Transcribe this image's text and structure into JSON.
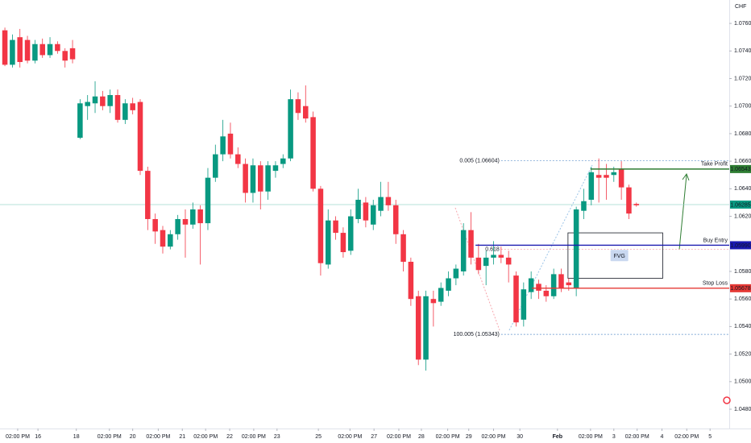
{
  "chart_data": {
    "type": "candlestick",
    "currency": "CHF",
    "up_color": "#089981",
    "down_color": "#f23645",
    "xlim": [
      -0.65,
      96.35
    ],
    "ylim": [
      1.0473,
      1.0777
    ],
    "yticks": [
      {
        "value": 1.076,
        "label": "1.07600"
      },
      {
        "value": 1.074,
        "label": "1.07400"
      },
      {
        "value": 1.072,
        "label": "1.07200"
      },
      {
        "value": 1.07,
        "label": "1.07000"
      },
      {
        "value": 1.068,
        "label": "1.06800"
      },
      {
        "value": 1.066,
        "label": "1.06600"
      },
      {
        "value": 1.064,
        "label": "1.06400"
      },
      {
        "value": 1.062,
        "label": "1.06200"
      },
      {
        "value": 1.058,
        "label": "1.05800"
      },
      {
        "value": 1.056,
        "label": "1.05600"
      },
      {
        "value": 1.054,
        "label": "1.05400"
      },
      {
        "value": 1.052,
        "label": "1.05200"
      },
      {
        "value": 1.05,
        "label": "1.05000"
      },
      {
        "value": 1.048,
        "label": "1.04800"
      }
    ],
    "xticks": [
      {
        "value": 1.7,
        "label": "02:00 PM"
      },
      {
        "value": 4.4,
        "label": "16"
      },
      {
        "value": 9.5,
        "label": "18"
      },
      {
        "value": 13.9,
        "label": "02:00 PM"
      },
      {
        "value": 17.0,
        "label": "20"
      },
      {
        "value": 20.4,
        "label": "02:00 PM"
      },
      {
        "value": 23.6,
        "label": "21"
      },
      {
        "value": 26.7,
        "label": "02:00 PM"
      },
      {
        "value": 29.9,
        "label": "22"
      },
      {
        "value": 33.1,
        "label": "02:00 PM"
      },
      {
        "value": 36.2,
        "label": "23"
      },
      {
        "value": 41.7,
        "label": "25"
      },
      {
        "value": 45.9,
        "label": "02:00 PM"
      },
      {
        "value": 49.1,
        "label": "27"
      },
      {
        "value": 52.4,
        "label": "02:00 PM"
      },
      {
        "value": 55.4,
        "label": "28"
      },
      {
        "value": 58.9,
        "label": "02:00 PM"
      },
      {
        "value": 61.7,
        "label": "29"
      },
      {
        "value": 65.0,
        "label": "02:00 PM"
      },
      {
        "value": 68.5,
        "label": "30"
      },
      {
        "value": 73.5,
        "label": "Feb"
      },
      {
        "value": 77.9,
        "label": "02:00 PM"
      },
      {
        "value": 81.0,
        "label": "3"
      },
      {
        "value": 84.1,
        "label": "02:00 PM"
      },
      {
        "value": 87.4,
        "label": "4"
      },
      {
        "value": 90.7,
        "label": "02:00 PM"
      },
      {
        "value": 93.8,
        "label": "5"
      }
    ],
    "candles": [
      [
        1.0755,
        1.0757,
        1.0729,
        1.073
      ],
      [
        1.073,
        1.0752,
        1.0728,
        1.0748
      ],
      [
        1.075,
        1.0756,
        1.0728,
        1.0732
      ],
      [
        1.0748,
        1.0751,
        1.0731,
        1.0733
      ],
      [
        1.0733,
        1.0748,
        1.0731,
        1.0745
      ],
      [
        1.0745,
        1.0749,
        1.0735,
        1.0737
      ],
      [
        1.0737,
        1.075,
        1.0735,
        1.0745
      ],
      [
        1.0745,
        1.0747,
        1.0738,
        1.074
      ],
      [
        1.074,
        1.0742,
        1.0728,
        1.0733
      ],
      [
        1.0742,
        1.0748,
        1.0731,
        1.0734
      ],
      [
        1.0677,
        1.0705,
        1.0676,
        1.0702
      ],
      [
        1.07,
        1.0708,
        1.069,
        1.0703
      ],
      [
        1.0702,
        1.0718,
        1.0695,
        1.0707
      ],
      [
        1.0707,
        1.0711,
        1.0697,
        1.07
      ],
      [
        1.07,
        1.0712,
        1.0695,
        1.0708
      ],
      [
        1.0708,
        1.0712,
        1.0688,
        1.069
      ],
      [
        1.069,
        1.0705,
        1.0687,
        1.0702
      ],
      [
        1.0702,
        1.0706,
        1.0694,
        1.0697
      ],
      [
        1.0703,
        1.0705,
        1.065,
        1.0653
      ],
      [
        1.0653,
        1.0656,
        1.061,
        1.0618
      ],
      [
        1.0618,
        1.0622,
        1.06,
        1.0609
      ],
      [
        1.061,
        1.0613,
        1.0593,
        1.0598
      ],
      [
        1.0598,
        1.061,
        1.0596,
        1.0607
      ],
      [
        1.0607,
        1.0621,
        1.0603,
        1.0618
      ],
      [
        1.0618,
        1.0625,
        1.059,
        1.0614
      ],
      [
        1.0614,
        1.063,
        1.0611,
        1.0625
      ],
      [
        1.0625,
        1.0628,
        1.0585,
        1.0615
      ],
      [
        1.0615,
        1.0655,
        1.061,
        1.0648
      ],
      [
        1.0648,
        1.0672,
        1.0645,
        1.0665
      ],
      [
        1.0665,
        1.069,
        1.066,
        1.0678
      ],
      [
        1.068,
        1.0688,
        1.0662,
        1.0665
      ],
      [
        1.0665,
        1.067,
        1.0655,
        1.0658
      ],
      [
        1.0658,
        1.0662,
        1.063,
        1.0637
      ],
      [
        1.0637,
        1.0662,
        1.063,
        1.0657
      ],
      [
        1.0657,
        1.066,
        1.0625,
        1.0638
      ],
      [
        1.0638,
        1.066,
        1.0632,
        1.0657
      ],
      [
        1.0653,
        1.066,
        1.0648,
        1.0657
      ],
      [
        1.0658,
        1.0665,
        1.0655,
        1.0662
      ],
      [
        1.0662,
        1.0712,
        1.066,
        1.0705
      ],
      [
        1.0705,
        1.071,
        1.069,
        1.0695
      ],
      [
        1.07,
        1.0715,
        1.0688,
        1.0691
      ],
      [
        1.0692,
        1.0696,
        1.0638,
        1.064
      ],
      [
        1.064,
        1.0642,
        1.0577,
        1.0586
      ],
      [
        1.0585,
        1.0625,
        1.0582,
        1.0617
      ],
      [
        1.0617,
        1.062,
        1.0603,
        1.0608
      ],
      [
        1.0608,
        1.0612,
        1.059,
        1.0594
      ],
      [
        1.0595,
        1.0625,
        1.0592,
        1.062
      ],
      [
        1.0618,
        1.064,
        1.0615,
        1.0632
      ],
      [
        1.063,
        1.0634,
        1.0612,
        1.0617
      ],
      [
        1.0614,
        1.0632,
        1.061,
        1.0628
      ],
      [
        1.0624,
        1.0645,
        1.062,
        1.0634
      ],
      [
        1.0634,
        1.0645,
        1.0624,
        1.0628
      ],
      [
        1.0628,
        1.0632,
        1.06,
        1.0607
      ],
      [
        1.0607,
        1.061,
        1.058,
        1.0587
      ],
      [
        1.0587,
        1.059,
        1.0555,
        1.056
      ],
      [
        1.0562,
        1.0566,
        1.0512,
        1.0516
      ],
      [
        1.0516,
        1.0566,
        1.0508,
        1.0562
      ],
      [
        1.056,
        1.0566,
        1.054,
        1.0557
      ],
      [
        1.0558,
        1.0572,
        1.0555,
        1.0568
      ],
      [
        1.0566,
        1.058,
        1.0562,
        1.0575
      ],
      [
        1.0575,
        1.0585,
        1.057,
        1.0582
      ],
      [
        1.058,
        1.0615,
        1.0577,
        1.061
      ],
      [
        1.061,
        1.0623,
        1.0585,
        1.059
      ],
      [
        1.059,
        1.06,
        1.0578,
        1.0581
      ],
      [
        1.0584,
        1.0595,
        1.057,
        1.059
      ],
      [
        1.059,
        1.0602,
        1.0585,
        1.0592
      ],
      [
        1.0592,
        1.0598,
        1.0586,
        1.059
      ],
      [
        1.059,
        1.0595,
        1.0572,
        1.0585
      ],
      [
        1.0577,
        1.058,
        1.054,
        1.0543
      ],
      [
        1.0545,
        1.0572,
        1.054,
        1.0567
      ],
      [
        1.0565,
        1.058,
        1.056,
        1.0575
      ],
      [
        1.0571,
        1.0574,
        1.056,
        1.0566
      ],
      [
        1.0566,
        1.057,
        1.0558,
        1.0562
      ],
      [
        1.0562,
        1.0582,
        1.056,
        1.0578
      ],
      [
        1.0578,
        1.0582,
        1.0565,
        1.0568
      ],
      [
        1.0572,
        1.0575,
        1.0566,
        1.057
      ],
      [
        1.0568,
        1.0627,
        1.0562,
        1.0625
      ],
      [
        1.0624,
        1.064,
        1.0618,
        1.0631
      ],
      [
        1.0632,
        1.0656,
        1.0628,
        1.0652
      ],
      [
        1.065,
        1.0662,
        1.063,
        1.0648
      ],
      [
        1.065,
        1.0658,
        1.0632,
        1.0648
      ],
      [
        1.065,
        1.0656,
        1.0645,
        1.0652
      ],
      [
        1.0654,
        1.066,
        1.0632,
        1.0641
      ],
      [
        1.0641,
        1.0643,
        1.0618,
        1.0622
      ],
      [
        1.0629,
        1.063,
        1.0627,
        1.0628
      ]
    ],
    "last_price": {
      "value": 1.06285,
      "label": "1.06285",
      "color": "#089981"
    },
    "levels": [
      {
        "name": "Take Profit",
        "value": 1.06543,
        "label": "1.06543",
        "color": "#2e7d32",
        "x_start": 77.9
      },
      {
        "name": "Buy Entry",
        "value": 1.0599,
        "label": "1.05990",
        "color": "#1a1ab0",
        "x_start": 62.6
      },
      {
        "name": "Stop Loss",
        "value": 1.05678,
        "label": "1.05678",
        "color": "#e53935",
        "x_start": 70.1
      }
    ],
    "fib_levels": [
      {
        "label": "0.005 (1.06604)",
        "value": 1.06604,
        "x_start": 66.0
      },
      {
        "label": "0.618",
        "value": 1.0596,
        "x_start": 66.0
      },
      {
        "label": "100.005 (1.05343)",
        "value": 1.05343,
        "x_start": 66.0
      }
    ],
    "fvg": {
      "label": "FVG",
      "top": 1.0608,
      "bottom": 1.0575,
      "x": [
        74.9,
        87.5
      ]
    }
  }
}
